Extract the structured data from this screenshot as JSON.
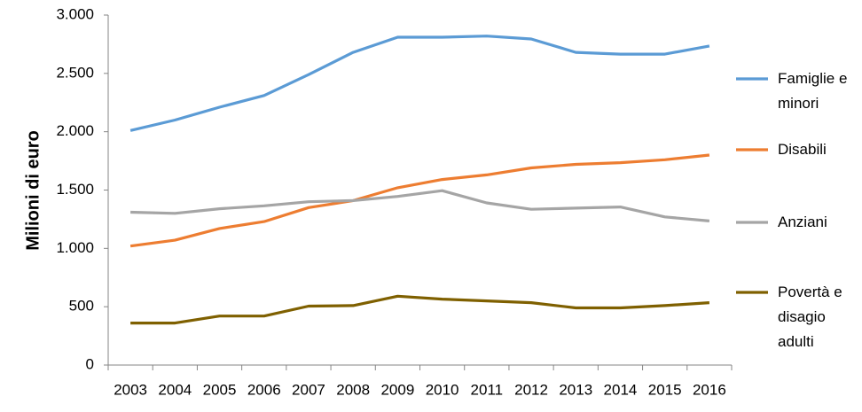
{
  "chart_data": {
    "type": "line",
    "ylabel": "Milioni di euro",
    "categories": [
      "2003",
      "2004",
      "2005",
      "2006",
      "2007",
      "2008",
      "2009",
      "2010",
      "2011",
      "2012",
      "2013",
      "2014",
      "2015",
      "2016"
    ],
    "series": [
      {
        "name": "Famiglie e minori",
        "color": "#5b9bd5",
        "values": [
          2010,
          2100,
          2210,
          2310,
          2490,
          2680,
          2810,
          2810,
          2820,
          2795,
          2680,
          2665,
          2665,
          2735
        ]
      },
      {
        "name": "Disabili",
        "color": "#ed7d31",
        "values": [
          1020,
          1070,
          1170,
          1230,
          1350,
          1410,
          1520,
          1590,
          1630,
          1690,
          1720,
          1735,
          1760,
          1800
        ]
      },
      {
        "name": "Anziani",
        "color": "#a5a5a5",
        "values": [
          1310,
          1300,
          1340,
          1365,
          1400,
          1410,
          1445,
          1495,
          1390,
          1335,
          1345,
          1355,
          1270,
          1235
        ]
      },
      {
        "name": "Povertà e disagio adulti",
        "color": "#7f6000",
        "values": [
          360,
          360,
          420,
          420,
          505,
          510,
          590,
          565,
          550,
          535,
          490,
          490,
          510,
          535
        ]
      }
    ],
    "ylim": [
      0,
      3000
    ],
    "yticks": [
      0,
      500,
      {
        "value": 1000,
        "label": "1.000"
      },
      {
        "value": 1500,
        "label": "1.500"
      },
      {
        "value": 2000,
        "label": "2.000"
      },
      {
        "value": 2500,
        "label": "2.500"
      },
      {
        "value": 3000,
        "label": "3.000"
      }
    ],
    "grid": false
  }
}
